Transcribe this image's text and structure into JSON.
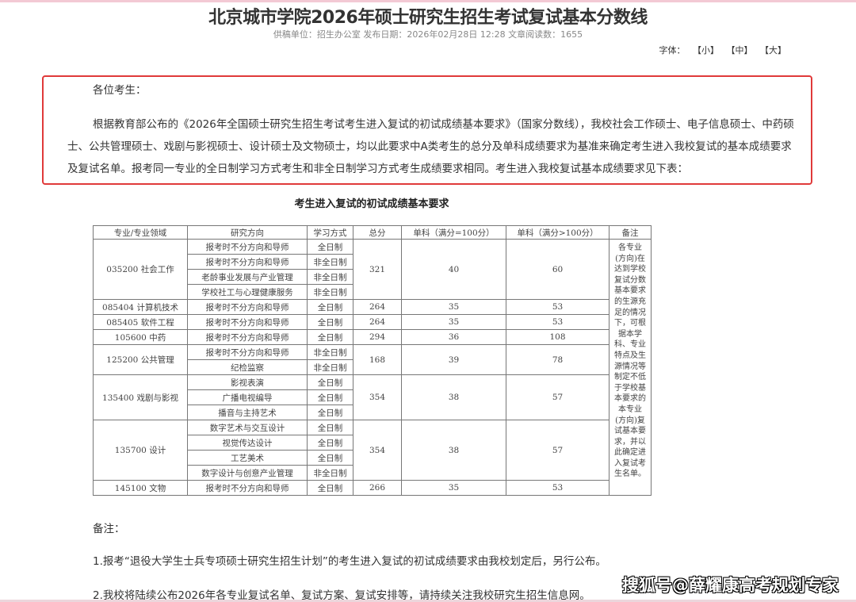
{
  "article": {
    "title": "北京城市学院2026年硕士研究生招生考试复试基本分数线",
    "meta": "供稿单位：招生办公室 发布日期：2026年02月28日 12:28 文章阅读数：1655",
    "font_label": "字体：",
    "font_small": "【小】",
    "font_medium": "【中】",
    "font_large": "【大】",
    "greeting": "各位考生：",
    "intro": "根据教育部公布的《2026年全国硕士研究生招生考试考生进入复试的初试成绩基本要求》（国家分数线），我校社会工作硕士、电子信息硕士、中药硕士、公共管理硕士、戏剧与影视硕士、设计硕士及文物硕士，均以此要求中A类考生的总分及单科成绩要求为基准来确定考生进入我校复试的基本成绩要求及复试名单。报考同一专业的全日制学习方式考生和非全日制学习方式考生成绩要求相同。考生进入我校复试基本成绩要求见下表：",
    "table_caption": "考生进入复试的初试成绩基本要求",
    "notes_heading": "备注：",
    "note1": "1.报考“退役大学生士兵专项硕士研究生招生计划”的考生进入复试的初试成绩要求由我校划定后，另行公布。",
    "note2": "2.我校将陆续公布2026年各专业复试名单、复试方案、复试安排等，请持续关注我校研究生招生信息网。",
    "watermark": "搜狐号@薛耀康高考规划专家"
  },
  "table": {
    "headers": [
      "专业/专业领域",
      "研究方向",
      "学习方式",
      "总分",
      "单科（满分=100分）",
      "单科（满分>100分）",
      "备注"
    ],
    "remark": "各专业(方向)在达到学校复试分数基本要求的生源充足的情况下，可根据本学科、专业特点及生源情况等制定不低于学校基本要求的本专业(方向)复试基本要求，并以此确定进入复试考生名单。",
    "groups": [
      {
        "major": "035200 社会工作",
        "total": "321",
        "single100": "40",
        "singleOver100": "60",
        "rows": [
          [
            "报考时不分方向和导师",
            "全日制"
          ],
          [
            "报考时不分方向和导师",
            "非全日制"
          ],
          [
            "老龄事业发展与产业管理",
            "非全日制"
          ],
          [
            "学校社工与心理健康服务",
            "非全日制"
          ]
        ]
      },
      {
        "major": "085404 计算机技术",
        "total": "264",
        "single100": "35",
        "singleOver100": "53",
        "rows": [
          [
            "报考时不分方向和导师",
            "全日制"
          ]
        ]
      },
      {
        "major": "085405 软件工程",
        "total": "264",
        "single100": "35",
        "singleOver100": "53",
        "rows": [
          [
            "报考时不分方向和导师",
            "全日制"
          ]
        ]
      },
      {
        "major": "105600 中药",
        "total": "294",
        "single100": "36",
        "singleOver100": "108",
        "rows": [
          [
            "报考时不分方向和导师",
            "全日制"
          ]
        ]
      },
      {
        "major": "125200 公共管理",
        "total": "168",
        "single100": "39",
        "singleOver100": "78",
        "rows": [
          [
            "报考时不分方向和导师",
            "非全日制"
          ],
          [
            "纪检监察",
            "非全日制"
          ]
        ]
      },
      {
        "major": "135400 戏剧与影视",
        "total": "354",
        "single100": "38",
        "singleOver100": "57",
        "rows": [
          [
            "影视表演",
            "全日制"
          ],
          [
            "广播电视编导",
            "全日制"
          ],
          [
            "播音与主持艺术",
            "全日制"
          ]
        ]
      },
      {
        "major": "135700 设计",
        "total": "354",
        "single100": "38",
        "singleOver100": "57",
        "rows": [
          [
            "数字艺术与交互设计",
            "全日制"
          ],
          [
            "视觉传达设计",
            "全日制"
          ],
          [
            "工艺美术",
            "全日制"
          ],
          [
            "数字设计与创意产业管理",
            "非全日制"
          ]
        ]
      },
      {
        "major": "145100 文物",
        "total": "266",
        "single100": "35",
        "singleOver100": "53",
        "rows": [
          [
            "报考时不分方向和导师",
            "全日制"
          ]
        ]
      }
    ]
  },
  "colors": {
    "highlight_border": "#e03a3a"
  }
}
